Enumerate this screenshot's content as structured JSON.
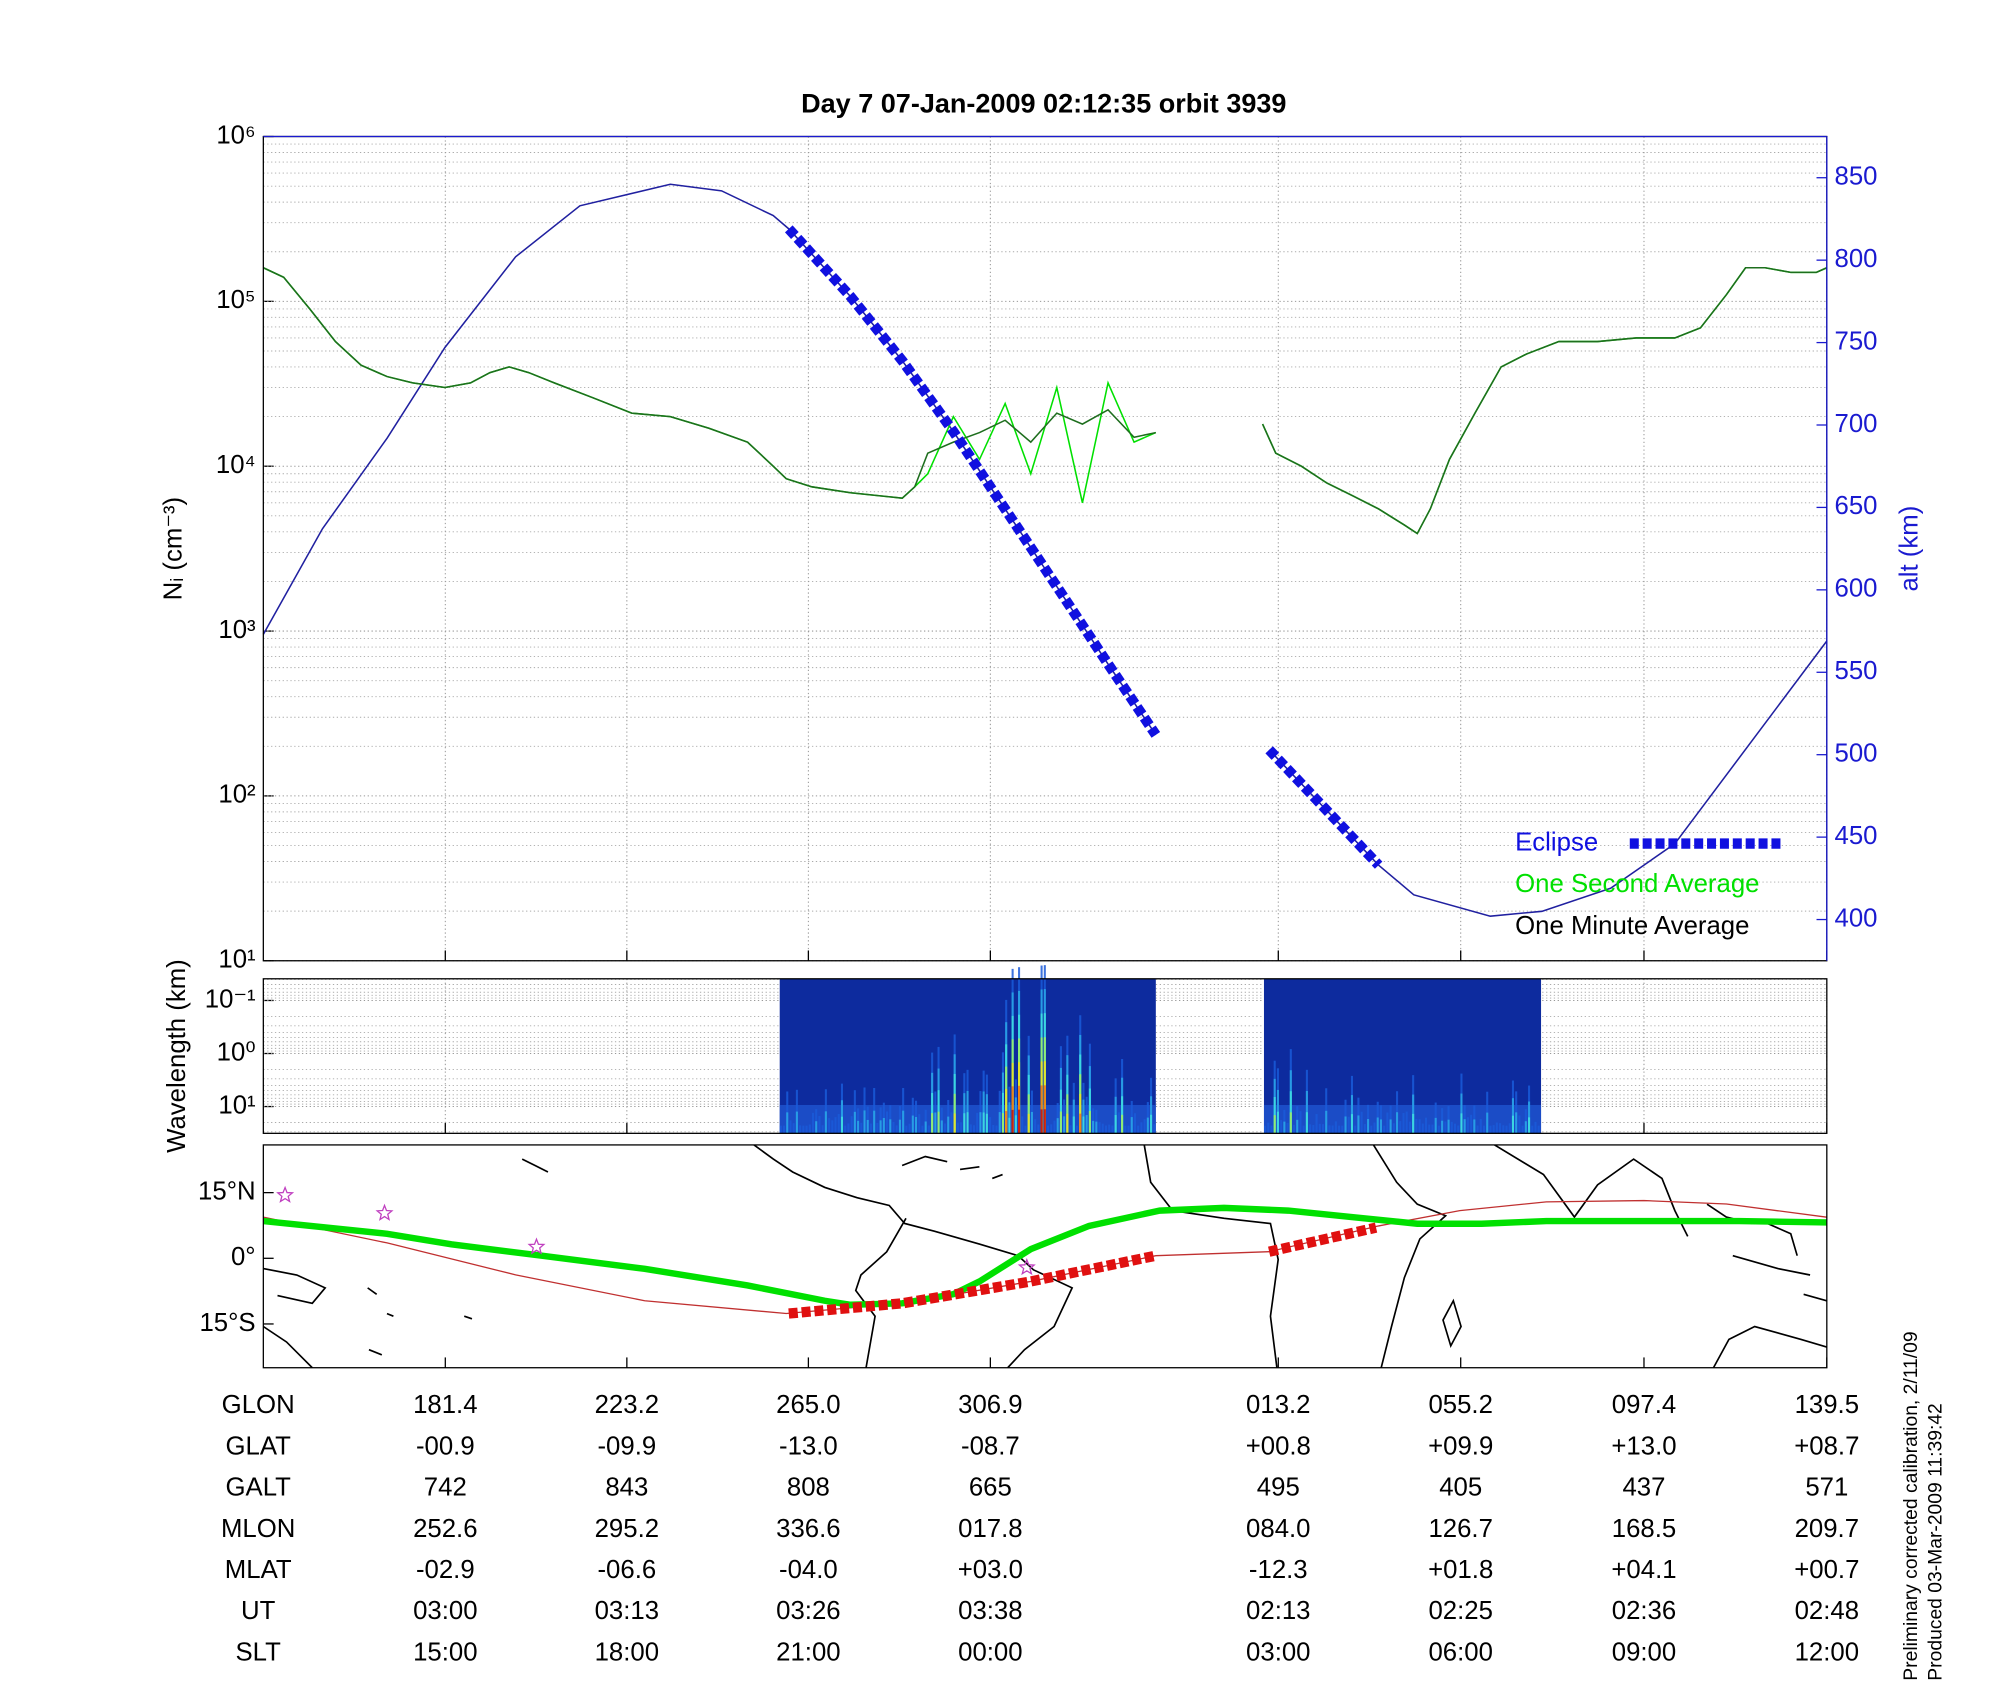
{
  "chart_data": [
    {
      "type": "line",
      "title": "Day 7  07-Jan-2009 02:12:35   orbit 3939",
      "ylabel": "Nᵢ (cm⁻³)",
      "y2label": "alt (km)",
      "log_y": true,
      "ylim": [
        10,
        1000000
      ],
      "yticks": [
        {
          "value": 10,
          "label": "10¹"
        },
        {
          "value": 100,
          "label": "10²"
        },
        {
          "value": 1000,
          "label": "10³"
        },
        {
          "value": 10000,
          "label": "10⁴"
        },
        {
          "value": 100000,
          "label": "10⁵"
        },
        {
          "value": 1000000,
          "label": "10⁶"
        }
      ],
      "y2lim": [
        375,
        875
      ],
      "y2ticks": [
        400,
        450,
        500,
        550,
        600,
        650,
        700,
        750,
        800,
        850
      ],
      "y2color": "#1a1ad0",
      "xlim": [
        139.5,
        499.5
      ],
      "grid": true,
      "legend": "lower right",
      "series": [
        {
          "name": "One Second Average",
          "color": "#00e000",
          "x": [
            139.5,
            144.2,
            150.2,
            156.1,
            162.0,
            168.0,
            173.9,
            181.3,
            187.2,
            191.7,
            196.1,
            200.6,
            206.5,
            215.4,
            224.3,
            233.2,
            242.1,
            251.0,
            256.9,
            259.9,
            265.8,
            274.7,
            286.6,
            289.5,
            292.5,
            298.4,
            304.4,
            310.3,
            316.2,
            322.2,
            328.1,
            334.0,
            340.0,
            345.0,
            357,
            369.6,
            372.6,
            378.5,
            384.4,
            390.4,
            396.3,
            402.2,
            405.2,
            408.2,
            412.6,
            418.5,
            424.5,
            430.4,
            437.8,
            446.7,
            455.6,
            464.5,
            470.4,
            476.4,
            480.8,
            485.3,
            491.2,
            497.1,
            499.5
          ],
          "values": [
            160000,
            140000,
            90000,
            57000,
            41000,
            35000,
            32000,
            30000,
            32000,
            37000,
            40000,
            37000,
            32000,
            26000,
            21000,
            20000,
            17000,
            14000,
            10000,
            8400,
            7500,
            6900,
            6400,
            7500,
            9000,
            20000,
            11000,
            24000,
            9000,
            30000,
            6000,
            32000,
            14000,
            16000,
            null,
            18000,
            12000,
            10000,
            7900,
            6600,
            5500,
            4400,
            3900,
            5500,
            11000,
            21000,
            40000,
            48000,
            57000,
            57000,
            60000,
            60000,
            69000,
            110000,
            160000,
            160000,
            150000,
            150000,
            160000
          ]
        },
        {
          "name": "One Minute Average",
          "color": "#1e6e1e",
          "legend_color": "#000000",
          "x": [
            139.5,
            144.2,
            150.2,
            156.1,
            162.0,
            168.0,
            173.9,
            181.3,
            187.2,
            191.7,
            196.1,
            200.6,
            206.5,
            215.4,
            224.3,
            233.2,
            242.1,
            251.0,
            256.9,
            259.9,
            265.8,
            274.7,
            286.6,
            289.5,
            292.5,
            298.4,
            304.4,
            310.3,
            316.2,
            322.2,
            328.1,
            334.0,
            340.0,
            345.0,
            357,
            369.6,
            372.6,
            378.5,
            384.4,
            390.4,
            396.3,
            402.2,
            405.2,
            408.2,
            412.6,
            418.5,
            424.5,
            430.4,
            437.8,
            446.7,
            455.6,
            464.5,
            470.4,
            476.4,
            480.8,
            485.3,
            491.2,
            497.1,
            499.5
          ],
          "values": [
            160000,
            140000,
            90000,
            57000,
            41000,
            35000,
            32000,
            30000,
            32000,
            37000,
            40000,
            37000,
            32000,
            26000,
            21000,
            20000,
            17000,
            14000,
            10000,
            8400,
            7500,
            6900,
            6400,
            7500,
            12000,
            14000,
            16000,
            19000,
            14000,
            21000,
            18000,
            22000,
            15000,
            16000,
            null,
            18000,
            12000,
            10000,
            7900,
            6600,
            5500,
            4400,
            3900,
            5500,
            11000,
            21000,
            40000,
            48000,
            57000,
            57000,
            60000,
            60000,
            69000,
            110000,
            160000,
            160000,
            150000,
            150000,
            160000
          ]
        },
        {
          "color": "#2020a0",
          "axis": "y2",
          "x": [
            139.5,
            153.1,
            168.0,
            181.3,
            197.6,
            212.4,
            233.2,
            245.0,
            256.9,
            260.5,
            274.7,
            286.6,
            298.4,
            310.3,
            322.2,
            334.0,
            345.0,
            357,
            371.1,
            384.4,
            396.3,
            404.4,
            422.0,
            433.9,
            449.7,
            464.5,
            499.5
          ],
          "values": [
            573,
            637,
            692,
            747,
            802,
            833,
            846,
            842,
            827,
            819,
            778,
            739,
            696,
            649,
            602,
            555,
            512,
            null,
            503,
            466,
            433,
            415,
            402,
            405,
            419,
            446,
            569
          ]
        },
        {
          "name": "Eclipse",
          "color": "#1010e0",
          "axis": "y2",
          "dashed": true,
          "x": [
            260.5,
            274.7,
            286.6,
            298.4,
            310.3,
            322.2,
            334.0,
            345.0,
            357,
            371.1,
            384.4,
            396.3
          ],
          "values": [
            819,
            778,
            739,
            696,
            649,
            602,
            555,
            512,
            null,
            503,
            466,
            433
          ]
        }
      ]
    },
    {
      "type": "spectrogram",
      "ylabel": "Wavelength (km)",
      "log_y": true,
      "ylim": [
        32,
        0.039
      ],
      "yticks": [
        {
          "value": 0.1,
          "label": "10⁻¹"
        },
        {
          "value": 1,
          "label": "10⁰"
        },
        {
          "value": 10,
          "label": "10¹"
        }
      ],
      "xlim": [
        139.5,
        499.5
      ],
      "grid": true,
      "segments": [
        [
          258.4,
          345.0
        ],
        [
          369.9,
          433.7
        ]
      ]
    },
    {
      "type": "map",
      "ylim": [
        -25,
        25.9
      ],
      "xlim": [
        139.5,
        499.5
      ],
      "yticks": [
        {
          "value": 15,
          "label": "15°N"
        },
        {
          "value": 0,
          "label": "0°"
        },
        {
          "value": -15,
          "label": "15°S"
        }
      ],
      "series": [
        {
          "color": "#c03030",
          "x": [
            139.5,
            168.0,
            197.6,
            227.3,
            259.9,
            286.6,
            316.2,
            345.0,
            371.1,
            396.3,
            415.0,
            434.9,
            457.4,
            476.4,
            499.5
          ],
          "values": [
            9.4,
            3.5,
            -3.8,
            -9.7,
            -12.6,
            -10.3,
            -5.3,
            0.6,
            1.5,
            7.4,
            10.9,
            12.9,
            13.2,
            12.4,
            9.4
          ]
        },
        {
          "color": "#00e000",
          "width": 5,
          "x": [
            139.5,
            168.0,
            182.8,
            203.6,
            227.3,
            251.0,
            268.8,
            274.7,
            286.6,
            298.4,
            304.4,
            316.2,
            329.6,
            345.9,
            360.7,
            375.5,
            390.4,
            405.2,
            420.0,
            434.9,
            449.7,
            464.5,
            479.3,
            499.5
          ],
          "values": [
            8.5,
            5.6,
            3.2,
            0.6,
            -2.4,
            -6.2,
            -9.7,
            -10.6,
            -10.3,
            -8.2,
            -5.3,
            2.1,
            7.4,
            10.9,
            11.5,
            10.9,
            9.4,
            7.9,
            7.9,
            8.5,
            8.5,
            8.5,
            8.5,
            8.2
          ]
        },
        {
          "color": "#e01010",
          "dashed": true,
          "x": [
            260.5,
            286.6,
            316.2,
            345.0,
            357,
            371.1,
            395.7
          ],
          "values": [
            -12.6,
            -10.3,
            -5.3,
            0.6,
            null,
            1.5,
            7.0
          ]
        }
      ],
      "stars": {
        "color": "#c040c0",
        "x": [
          144.5,
          167.4,
          202.4,
          315.3
        ],
        "values": [
          14.4,
          10.3,
          2.6,
          -2.1
        ]
      }
    }
  ],
  "table": {
    "rows": [
      {
        "label": "GLON",
        "values": [
          "181.4",
          "223.2",
          "265.0",
          "306.9",
          "013.2",
          "055.2",
          "097.4",
          "139.5"
        ]
      },
      {
        "label": "GLAT",
        "values": [
          "-00.9",
          "-09.9",
          "-13.0",
          "-08.7",
          "+00.8",
          "+09.9",
          "+13.0",
          "+08.7"
        ]
      },
      {
        "label": "GALT",
        "values": [
          "742",
          "843",
          "808",
          "665",
          "495",
          "405",
          "437",
          "571"
        ]
      },
      {
        "label": "MLON",
        "values": [
          "252.6",
          "295.2",
          "336.6",
          "017.8",
          "084.0",
          "126.7",
          "168.5",
          "209.7"
        ]
      },
      {
        "label": "MLAT",
        "values": [
          "-02.9",
          "-06.6",
          "-04.0",
          "+03.0",
          "-12.3",
          "+01.8",
          "+04.1",
          "+00.7"
        ]
      },
      {
        "label": "UT",
        "values": [
          "03:00",
          "03:13",
          "03:26",
          "03:38",
          "02:13",
          "02:25",
          "02:36",
          "02:48"
        ]
      },
      {
        "label": "SLT",
        "values": [
          "15:00",
          "18:00",
          "21:00",
          "00:00",
          "03:00",
          "06:00",
          "09:00",
          "12:00"
        ]
      }
    ]
  },
  "footnotes": [
    "Preliminary corrected calibration, 2/11/09",
    "Produced 03-Mar-2009 11:39:42"
  ]
}
